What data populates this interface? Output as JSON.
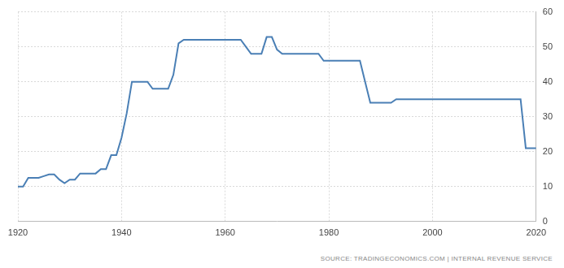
{
  "chart_data": {
    "type": "line",
    "source": "SOURCE: TRADINGECONOMICS.COM | INTERNAL REVENUE SERVICE",
    "x": [
      1920,
      1921,
      1922,
      1923,
      1924,
      1925,
      1926,
      1927,
      1928,
      1929,
      1930,
      1931,
      1932,
      1933,
      1934,
      1935,
      1936,
      1937,
      1938,
      1939,
      1940,
      1941,
      1942,
      1943,
      1944,
      1945,
      1946,
      1947,
      1948,
      1949,
      1950,
      1951,
      1952,
      1953,
      1954,
      1955,
      1956,
      1957,
      1958,
      1959,
      1960,
      1961,
      1962,
      1963,
      1964,
      1965,
      1966,
      1967,
      1968,
      1969,
      1970,
      1971,
      1972,
      1973,
      1974,
      1975,
      1976,
      1977,
      1978,
      1979,
      1980,
      1981,
      1982,
      1983,
      1984,
      1985,
      1986,
      1987,
      1988,
      1989,
      1990,
      1991,
      1992,
      1993,
      1994,
      1995,
      1996,
      1997,
      1998,
      1999,
      2000,
      2001,
      2002,
      2003,
      2004,
      2005,
      2006,
      2007,
      2008,
      2009,
      2010,
      2011,
      2012,
      2013,
      2014,
      2015,
      2016,
      2017,
      2018,
      2019,
      2020
    ],
    "values": [
      10,
      10,
      12.5,
      12.5,
      12.5,
      13,
      13.5,
      13.5,
      12,
      11,
      12,
      12,
      13.75,
      13.75,
      13.75,
      13.75,
      15,
      15,
      19,
      19,
      24,
      31,
      40,
      40,
      40,
      40,
      38,
      38,
      38,
      38,
      42,
      51,
      52,
      52,
      52,
      52,
      52,
      52,
      52,
      52,
      52,
      52,
      52,
      52,
      50,
      48,
      48,
      48,
      52.8,
      52.8,
      49.2,
      48,
      48,
      48,
      48,
      48,
      48,
      48,
      48,
      46,
      46,
      46,
      46,
      46,
      46,
      46,
      46,
      40,
      34,
      34,
      34,
      34,
      34,
      35,
      35,
      35,
      35,
      35,
      35,
      35,
      35,
      35,
      35,
      35,
      35,
      35,
      35,
      35,
      35,
      35,
      35,
      35,
      35,
      35,
      35,
      35,
      35,
      35,
      21,
      21,
      21
    ],
    "color": "#4a7fb5",
    "xlim": [
      1920,
      2020
    ],
    "xticks": [
      1920,
      1940,
      1960,
      1980,
      2000,
      2020
    ],
    "ylim": [
      0,
      60
    ],
    "yticks": [
      0,
      10,
      20,
      30,
      40,
      50,
      60
    ],
    "grid": true
  }
}
